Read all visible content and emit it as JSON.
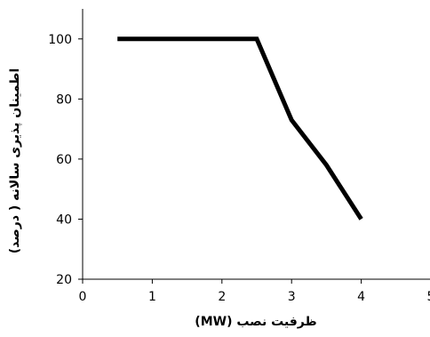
{
  "chart_data": {
    "type": "line",
    "title": "",
    "xlabel": "ظرفیت نصب (MW)",
    "ylabel": "اطمینان پذیری سالانه ( درصد)",
    "xlim": [
      0,
      5
    ],
    "ylim": [
      20,
      110
    ],
    "x_ticks": [
      "0",
      "1",
      "2",
      "3",
      "4",
      "5"
    ],
    "y_ticks": [
      "20",
      "40",
      "60",
      "80",
      "100"
    ],
    "grid": false,
    "legend": "none",
    "series": [
      {
        "color": "#000000",
        "x": [
          0.5,
          1,
          1.5,
          2,
          2.5,
          3,
          3.5,
          4
        ],
        "y": [
          100,
          100,
          100,
          100,
          100,
          73,
          58,
          40
        ]
      }
    ]
  }
}
